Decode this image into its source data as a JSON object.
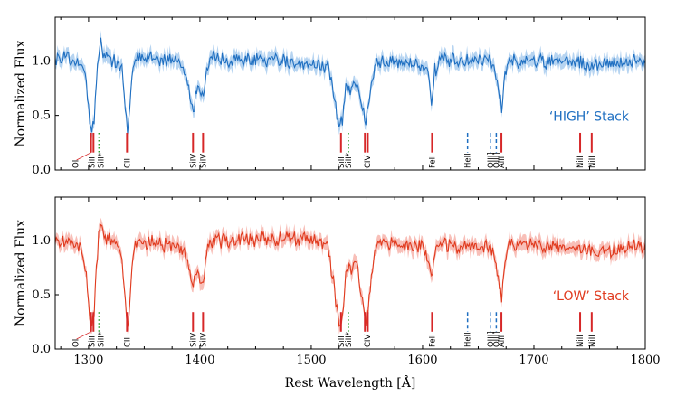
{
  "chart_data": {
    "type": "line",
    "xlabel": "Rest Wavelength [Å]",
    "ylabel": "Normalized Flux",
    "xlim": [
      1270,
      1800
    ],
    "ylim": [
      0.0,
      1.4
    ],
    "x_ticks": [
      1300,
      1400,
      1500,
      1600,
      1700,
      1800
    ],
    "x_tick_labels": [
      "1300",
      "1400",
      "1500",
      "1600",
      "1700",
      "1800"
    ],
    "y_ticks": [
      0.0,
      0.5,
      1.0
    ],
    "y_tick_labels": [
      "0.0",
      "0.5",
      "1.0"
    ],
    "absorption_lines": [
      {
        "label": "OI",
        "wavelength": 1302.2,
        "style": "solid",
        "color": "#d62728"
      },
      {
        "label": "SiII",
        "wavelength": 1304.4,
        "style": "solid",
        "color": "#d62728"
      },
      {
        "label": "SiII*",
        "wavelength": 1309.3,
        "style": "dotted",
        "color": "#2ca02c"
      },
      {
        "label": "CII",
        "wavelength": 1334.5,
        "style": "solid",
        "color": "#d62728"
      },
      {
        "label": "SiIV",
        "wavelength": 1393.8,
        "style": "solid",
        "color": "#d62728"
      },
      {
        "label": "SiIV",
        "wavelength": 1402.8,
        "style": "solid",
        "color": "#d62728"
      },
      {
        "label": "SiII",
        "wavelength": 1526.7,
        "style": "solid",
        "color": "#d62728"
      },
      {
        "label": "SiII*",
        "wavelength": 1533.4,
        "style": "dotted",
        "color": "#2ca02c"
      },
      {
        "label": "CIV",
        "wavelength": 1548.2,
        "style": "solid",
        "color": "#d62728"
      },
      {
        "label": "CIV",
        "wavelength": 1550.8,
        "style": "solid",
        "color": "#d62728"
      },
      {
        "label": "FeII",
        "wavelength": 1608.5,
        "style": "solid",
        "color": "#d62728"
      },
      {
        "label": "HeII",
        "wavelength": 1640.4,
        "style": "dashed",
        "color": "#1f6fc1"
      },
      {
        "label": "OIII]",
        "wavelength": 1660.8,
        "style": "dashed",
        "color": "#1f6fc1"
      },
      {
        "label": "OIII]",
        "wavelength": 1666.2,
        "style": "dashed",
        "color": "#1f6fc1"
      },
      {
        "label": "AlII",
        "wavelength": 1670.8,
        "style": "solid",
        "color": "#d62728"
      },
      {
        "label": "NiII",
        "wavelength": 1741.5,
        "style": "solid",
        "color": "#d62728"
      },
      {
        "label": "NiII",
        "wavelength": 1751.9,
        "style": "solid",
        "color": "#d62728"
      }
    ],
    "panels": [
      {
        "name": "HIGH",
        "label": "‘HIGH’ Stack",
        "color": "#1f6fc1",
        "band_color": "#9ec5ec",
        "profile": [
          [
            1270,
            1.04
          ],
          [
            1285,
            1.0
          ],
          [
            1294,
            0.98
          ],
          [
            1298,
            0.8
          ],
          [
            1301,
            0.45
          ],
          [
            1303,
            0.42
          ],
          [
            1305,
            0.45
          ],
          [
            1307,
            0.78
          ],
          [
            1309,
            1.05
          ],
          [
            1311,
            1.2
          ],
          [
            1313,
            1.05
          ],
          [
            1325,
            1.0
          ],
          [
            1330,
            0.92
          ],
          [
            1333,
            0.55
          ],
          [
            1335,
            0.33
          ],
          [
            1337,
            0.55
          ],
          [
            1340,
            0.95
          ],
          [
            1345,
            1.05
          ],
          [
            1380,
            1.0
          ],
          [
            1388,
            0.85
          ],
          [
            1393,
            0.55
          ],
          [
            1395,
            0.58
          ],
          [
            1398,
            0.8
          ],
          [
            1401,
            0.72
          ],
          [
            1403,
            0.7
          ],
          [
            1406,
            0.92
          ],
          [
            1410,
            1.02
          ],
          [
            1500,
            0.98
          ],
          [
            1515,
            0.95
          ],
          [
            1521,
            0.65
          ],
          [
            1525,
            0.38
          ],
          [
            1528,
            0.45
          ],
          [
            1531,
            0.78
          ],
          [
            1535,
            0.7
          ],
          [
            1541,
            0.8
          ],
          [
            1545,
            0.62
          ],
          [
            1549,
            0.46
          ],
          [
            1553,
            0.7
          ],
          [
            1558,
            1.0
          ],
          [
            1600,
            0.97
          ],
          [
            1605,
            0.85
          ],
          [
            1608,
            0.62
          ],
          [
            1611,
            0.9
          ],
          [
            1615,
            1.0
          ],
          [
            1660,
            1.0
          ],
          [
            1666,
            0.88
          ],
          [
            1671,
            0.55
          ],
          [
            1674,
            0.85
          ],
          [
            1678,
            1.0
          ],
          [
            1740,
            1.0
          ],
          [
            1745,
            0.95
          ],
          [
            1800,
            1.0
          ]
        ]
      },
      {
        "name": "LOW",
        "label": "‘LOW’ Stack",
        "color": "#e03a1e",
        "band_color": "#f5aaa0",
        "profile": [
          [
            1270,
            1.0
          ],
          [
            1285,
            0.97
          ],
          [
            1294,
            0.95
          ],
          [
            1298,
            0.72
          ],
          [
            1301,
            0.3
          ],
          [
            1303,
            0.25
          ],
          [
            1305,
            0.3
          ],
          [
            1307,
            0.75
          ],
          [
            1309,
            1.05
          ],
          [
            1311,
            1.15
          ],
          [
            1313,
            1.05
          ],
          [
            1325,
            0.95
          ],
          [
            1330,
            0.85
          ],
          [
            1333,
            0.4
          ],
          [
            1335,
            0.18
          ],
          [
            1337,
            0.4
          ],
          [
            1340,
            0.9
          ],
          [
            1345,
            1.0
          ],
          [
            1385,
            0.92
          ],
          [
            1390,
            0.75
          ],
          [
            1393,
            0.62
          ],
          [
            1395,
            0.65
          ],
          [
            1398,
            0.72
          ],
          [
            1401,
            0.62
          ],
          [
            1403,
            0.6
          ],
          [
            1406,
            0.88
          ],
          [
            1410,
            1.0
          ],
          [
            1500,
            1.02
          ],
          [
            1515,
            0.95
          ],
          [
            1521,
            0.55
          ],
          [
            1525,
            0.22
          ],
          [
            1528,
            0.3
          ],
          [
            1531,
            0.7
          ],
          [
            1535,
            0.75
          ],
          [
            1541,
            0.8
          ],
          [
            1545,
            0.5
          ],
          [
            1549,
            0.25
          ],
          [
            1553,
            0.55
          ],
          [
            1558,
            0.98
          ],
          [
            1600,
            0.95
          ],
          [
            1605,
            0.82
          ],
          [
            1608,
            0.7
          ],
          [
            1611,
            0.88
          ],
          [
            1615,
            0.95
          ],
          [
            1660,
            0.95
          ],
          [
            1666,
            0.8
          ],
          [
            1671,
            0.45
          ],
          [
            1674,
            0.8
          ],
          [
            1678,
            0.95
          ],
          [
            1740,
            0.95
          ],
          [
            1745,
            0.9
          ],
          [
            1800,
            0.95
          ]
        ]
      }
    ]
  }
}
